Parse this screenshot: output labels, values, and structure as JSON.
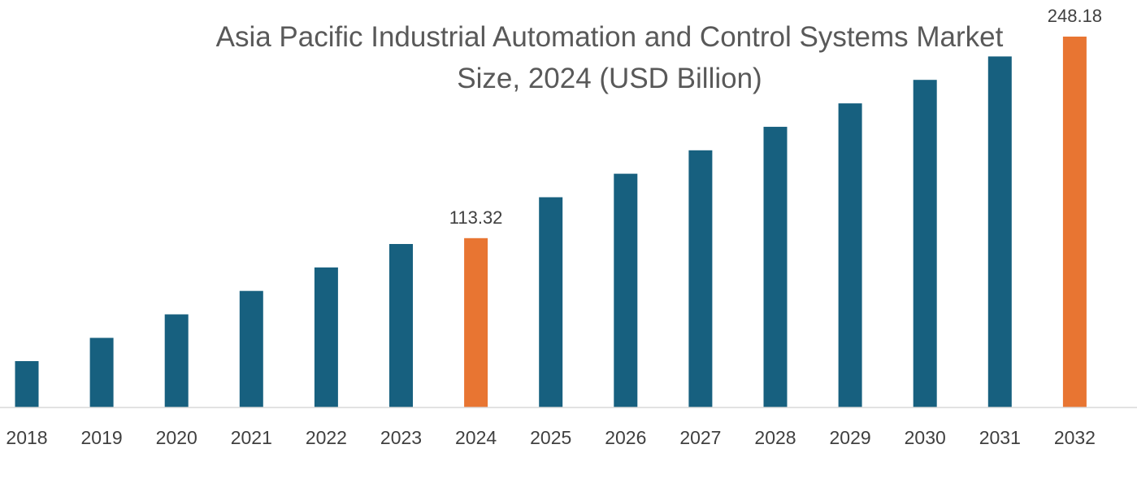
{
  "chart_data": {
    "type": "bar",
    "title_lines": [
      "Asia Pacific Industrial Automation and Control Systems Market",
      "Size, 2024 (USD Billion)"
    ],
    "categories": [
      "2018",
      "2019",
      "2020",
      "2021",
      "2022",
      "2023",
      "2024",
      "2025",
      "2026",
      "2027",
      "2028",
      "2029",
      "2030",
      "2031",
      "2032"
    ],
    "values": [
      31.0,
      46.6,
      62.3,
      78.0,
      93.7,
      109.4,
      113.32,
      140.7,
      156.4,
      172.1,
      187.8,
      203.5,
      219.2,
      234.9,
      248.18
    ],
    "data_labels": [
      null,
      null,
      null,
      null,
      null,
      null,
      "113.32",
      null,
      null,
      null,
      null,
      null,
      null,
      null,
      "248.18"
    ],
    "highlight_categories": [
      "2024",
      "2032"
    ],
    "xlabel": "",
    "ylabel": "",
    "ylim": [
      0,
      248.18
    ],
    "grid": false,
    "legend": "none",
    "colors": {
      "bar": "#17607f",
      "highlight": "#e87532",
      "axis_line": "#d9d9d9"
    }
  }
}
